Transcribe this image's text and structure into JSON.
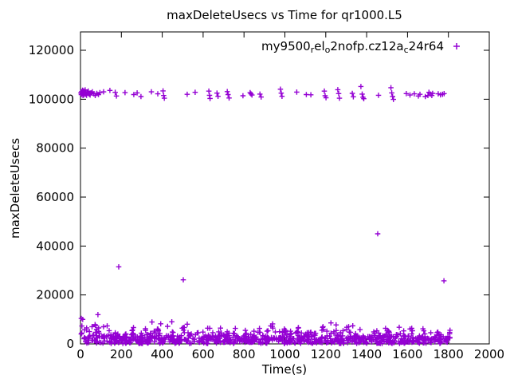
{
  "window": {
    "background": "#ffffff",
    "kind": "gnuplot chart render"
  },
  "chart_data": {
    "type": "scatter",
    "title": "maxDeleteUsecs vs Time for qr1000.L5",
    "xlabel": "Time(s)",
    "ylabel": "maxDeleteUsecs",
    "xlim": [
      0,
      2000
    ],
    "ylim": [
      0,
      127500
    ],
    "xticks": [
      0,
      200,
      400,
      600,
      800,
      1000,
      1200,
      1400,
      1600,
      1800,
      2000
    ],
    "yticks": [
      0,
      20000,
      40000,
      60000,
      80000,
      100000,
      120000
    ],
    "grid": false,
    "axis_color": "#000000",
    "ticks_mirrored": true,
    "legend": {
      "position": "top-right-inside",
      "label": "my9500_rel_o2nofp.cz12a_c24r64",
      "label_parts": [
        {
          "text": "my9500",
          "sub": false
        },
        {
          "text": "r",
          "sub": true
        },
        {
          "text": "el",
          "sub": false
        },
        {
          "text": "o",
          "sub": true
        },
        {
          "text": "2nofp.cz12a",
          "sub": false
        },
        {
          "text": "c",
          "sub": true
        },
        {
          "text": "24r64",
          "sub": false
        }
      ]
    },
    "series": [
      {
        "name": "my9500_rel_o2nofp.cz12a_c24r64",
        "marker": "plus",
        "color": "#9400d3",
        "upper_band_points": [
          [
            2,
            102600
          ],
          [
            4,
            101900
          ],
          [
            6,
            103100
          ],
          [
            8,
            102200
          ],
          [
            10,
            103700
          ],
          [
            12,
            101500
          ],
          [
            14,
            102900
          ],
          [
            16,
            103400
          ],
          [
            18,
            101800
          ],
          [
            20,
            102500
          ],
          [
            23,
            103800
          ],
          [
            26,
            102000
          ],
          [
            30,
            101600
          ],
          [
            34,
            102800
          ],
          [
            38,
            103300
          ],
          [
            42,
            102100
          ],
          [
            47,
            101700
          ],
          [
            52,
            102600
          ],
          [
            58,
            103000
          ],
          [
            65,
            102200
          ],
          [
            72,
            101500
          ],
          [
            80,
            102400
          ],
          [
            88,
            101900
          ],
          [
            95,
            102700
          ],
          [
            113,
            103000
          ],
          [
            144,
            103600
          ],
          [
            170,
            102800
          ],
          [
            176,
            101300
          ],
          [
            218,
            102700
          ],
          [
            261,
            101900
          ],
          [
            277,
            102600
          ],
          [
            296,
            101100
          ],
          [
            347,
            103000
          ],
          [
            378,
            102200
          ],
          [
            404,
            103400
          ],
          [
            407,
            101500
          ],
          [
            410,
            100400
          ],
          [
            522,
            102000
          ],
          [
            561,
            102800
          ],
          [
            628,
            103300
          ],
          [
            631,
            101600
          ],
          [
            634,
            100300
          ],
          [
            668,
            102500
          ],
          [
            673,
            101200
          ],
          [
            718,
            103100
          ],
          [
            722,
            101900
          ],
          [
            727,
            100500
          ],
          [
            795,
            101400
          ],
          [
            830,
            102700
          ],
          [
            834,
            102200
          ],
          [
            839,
            101700
          ],
          [
            878,
            102100
          ],
          [
            884,
            100900
          ],
          [
            978,
            104100
          ],
          [
            982,
            102500
          ],
          [
            986,
            101200
          ],
          [
            1058,
            102900
          ],
          [
            1105,
            101900
          ],
          [
            1127,
            101800
          ],
          [
            1193,
            103300
          ],
          [
            1197,
            101400
          ],
          [
            1201,
            100600
          ],
          [
            1259,
            103900
          ],
          [
            1263,
            102300
          ],
          [
            1267,
            100400
          ],
          [
            1330,
            102400
          ],
          [
            1335,
            101000
          ],
          [
            1372,
            105200
          ],
          [
            1378,
            102100
          ],
          [
            1382,
            100800
          ],
          [
            1386,
            100200
          ],
          [
            1458,
            101600
          ],
          [
            1519,
            104700
          ],
          [
            1523,
            102600
          ],
          [
            1527,
            101100
          ],
          [
            1531,
            99900
          ],
          [
            1594,
            102300
          ],
          [
            1612,
            101700
          ],
          [
            1633,
            102200
          ],
          [
            1653,
            101300
          ],
          [
            1661,
            102000
          ],
          [
            1687,
            101100
          ],
          [
            1700,
            101500
          ],
          [
            1705,
            102800
          ],
          [
            1712,
            102100
          ],
          [
            1719,
            101500
          ],
          [
            1723,
            102400
          ],
          [
            1750,
            102200
          ],
          [
            1761,
            101800
          ],
          [
            1771,
            102000
          ],
          [
            1779,
            102300
          ]
        ],
        "outlier_points": [
          [
            4,
            10400
          ],
          [
            187,
            31500
          ],
          [
            503,
            26200
          ],
          [
            1454,
            45000
          ],
          [
            1778,
            25800
          ]
        ],
        "lower_band_summary": "dense band of ~900 points from 0-1810s, mostly 150-3400 usecs, periodic spikes to 3400-6800, rare spikes 6800-9400, slightly taller near start",
        "lower_band_spec": {
          "count": 900,
          "seed": 1337,
          "t_min": 2,
          "t_max": 1808,
          "base_min": 150,
          "base_max": 3400,
          "spike_min": 3400,
          "spike_max": 6800,
          "spike_chance": 0.1,
          "period": 62,
          "period_window": 14,
          "period_spike_chance": 0.5,
          "tall_min": 6800,
          "tall_max": 9400,
          "tall_chance": 0.015,
          "left_boost_t_max": 140,
          "left_boost": 1.3
        }
      }
    ]
  }
}
